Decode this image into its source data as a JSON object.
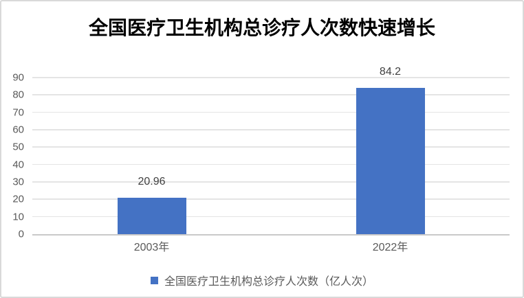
{
  "chart": {
    "title": "全国医疗卫生机构总诊疗人次数快速增长",
    "legend_label": "全国医疗卫生机构总诊疗人次数（亿人次）"
  },
  "chart_data": {
    "type": "bar",
    "title": "全国医疗卫生机构总诊疗人次数快速增长",
    "categories": [
      "2003年",
      "2022年"
    ],
    "series": [
      {
        "name": "全国医疗卫生机构总诊疗人次数（亿人次）",
        "values": [
          20.96,
          84.2
        ]
      }
    ],
    "data_labels": [
      "20.96",
      "84.2"
    ],
    "xlabel": "",
    "ylabel": "",
    "ylim": [
      0,
      90
    ],
    "yticks": [
      0,
      10,
      20,
      30,
      40,
      50,
      60,
      70,
      80,
      90
    ],
    "grid": true,
    "legend_position": "bottom"
  },
  "colors": {
    "bar": "#4472C4",
    "gridline": "#E4E4E4",
    "axis_line": "#C9C9C9",
    "axis_text": "#595959",
    "data_label_text": "#404040",
    "title_text": "#000000",
    "frame_border": "#D9D9D9"
  }
}
